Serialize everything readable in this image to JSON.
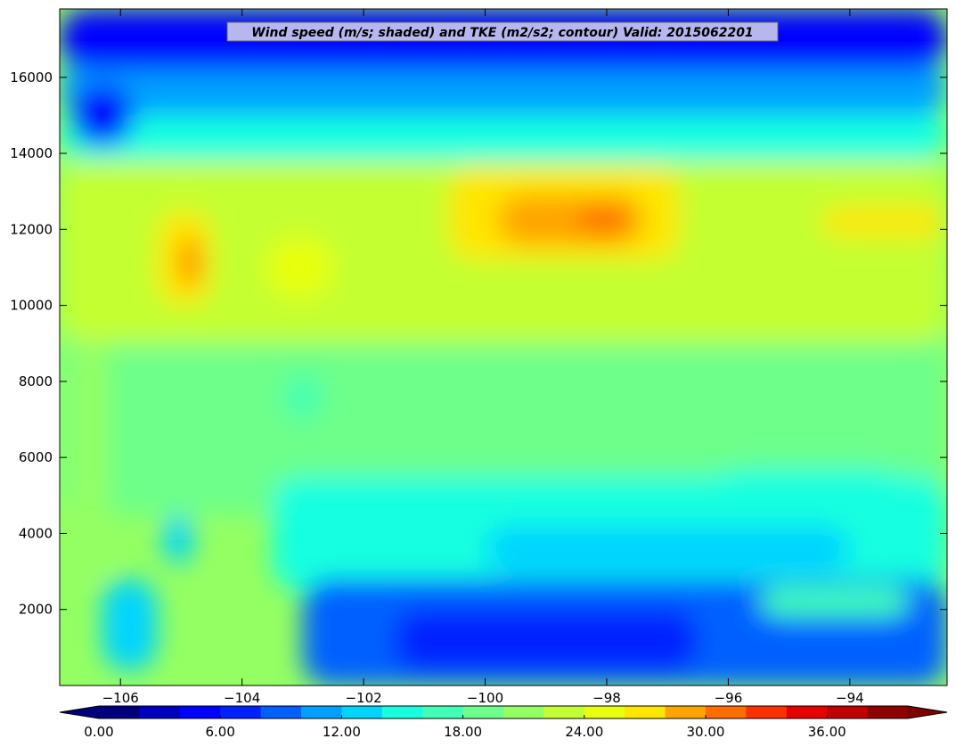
{
  "chart_data": {
    "type": "heatmap",
    "title": "Wind speed (m/s; shaded) and TKE (m2/s2; contour) Valid: 2015062201",
    "xlabel": "",
    "ylabel": "",
    "xlim": [
      -107.0,
      -92.4
    ],
    "ylim": [
      0,
      17800
    ],
    "x_ticks": [
      -106,
      -104,
      -102,
      -100,
      -98,
      -96,
      -94
    ],
    "x_tick_labels": [
      "−106",
      "−104",
      "−102",
      "−100",
      "−98",
      "−96",
      "−94"
    ],
    "y_ticks": [
      2000,
      4000,
      6000,
      8000,
      10000,
      12000,
      14000,
      16000
    ],
    "y_tick_labels": [
      "2000",
      "4000",
      "6000",
      "8000",
      "10000",
      "12000",
      "14000",
      "16000"
    ],
    "colorbar": {
      "min": 0,
      "max": 40,
      "step": 2,
      "extend": "both",
      "tick_values": [
        0,
        6,
        12,
        18,
        24,
        30,
        36
      ],
      "tick_labels": [
        "0.00",
        "6.00",
        "12.00",
        "18.00",
        "24.00",
        "30.00",
        "36.00"
      ],
      "colors": [
        "#00007f",
        "#0000bf",
        "#0000ff",
        "#0020ff",
        "#0060ff",
        "#00a0ff",
        "#00d4ff",
        "#18ffe0",
        "#40ffb6",
        "#6dff8a",
        "#94ff62",
        "#c4ff33",
        "#e8ff0f",
        "#ffe600",
        "#ffa400",
        "#ff6c00",
        "#ff3000",
        "#e80000",
        "#c00000",
        "#8f0000"
      ],
      "under_color": "#00007f",
      "over_color": "#7f0000"
    },
    "grid": false,
    "features": [
      {
        "desc": "jet core",
        "x_range": [
          -100.5,
          -96.9
        ],
        "y_range": [
          11000,
          13600
        ],
        "max_speed": 30
      },
      {
        "desc": "jet maxima",
        "x_range": [
          -105.3,
          -104.6
        ],
        "y_range": [
          10000,
          12400
        ],
        "max_speed": 30
      },
      {
        "desc": "weak winds aloft",
        "x_range": [
          -107,
          -92.4
        ],
        "y_range": [
          16000,
          17800
        ],
        "max_speed": 6
      },
      {
        "desc": "low-level weak winds",
        "x_range": [
          -103,
          -92.4
        ],
        "y_range": [
          0,
          3000
        ],
        "max_speed": 8
      }
    ]
  }
}
